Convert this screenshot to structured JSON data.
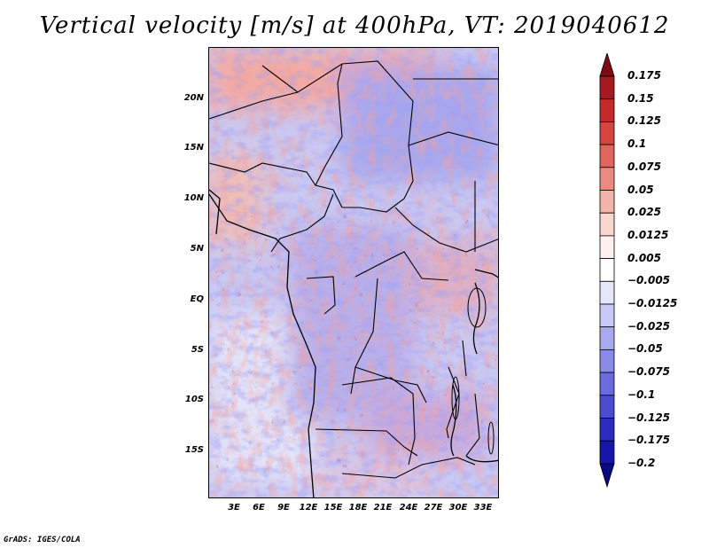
{
  "title": "Vertical velocity [m/s] at 400hPa, VT: 2019040612",
  "map": {
    "lat_ticks": [
      "20N",
      "15N",
      "10N",
      "5N",
      "EQ",
      "5S",
      "10S",
      "15S"
    ],
    "lat_values": [
      20,
      15,
      10,
      5,
      0,
      -5,
      -10,
      -15
    ],
    "lon_ticks": [
      "3E",
      "6E",
      "9E",
      "12E",
      "15E",
      "18E",
      "21E",
      "24E",
      "27E",
      "30E",
      "33E"
    ],
    "lon_values": [
      3,
      6,
      9,
      12,
      15,
      18,
      21,
      24,
      27,
      30,
      33
    ],
    "lat_range": [
      -20,
      24.5
    ],
    "lon_range": [
      0,
      35
    ]
  },
  "colorbar": {
    "labels": [
      "0.175",
      "0.15",
      "0.125",
      "0.1",
      "0.075",
      "0.05",
      "0.025",
      "0.0125",
      "0.005",
      "−0.005",
      "−0.0125",
      "−0.025",
      "−0.05",
      "−0.075",
      "−0.1",
      "−0.125",
      "−0.175",
      "−0.2"
    ],
    "colors": [
      "#7f0b14",
      "#a51a20",
      "#c42a2a",
      "#d6453f",
      "#e0665d",
      "#ea8a80",
      "#f3b3aa",
      "#f9d6d0",
      "#fdf0ee",
      "#ffffff",
      "#e6e6fb",
      "#c8c8f6",
      "#a9a9f0",
      "#8a8ae8",
      "#6b6be0",
      "#4b4bd2",
      "#2c2cc0",
      "#1616a8",
      "#0a0a85"
    ]
  },
  "footer": "GrADS: IGES/COLA"
}
